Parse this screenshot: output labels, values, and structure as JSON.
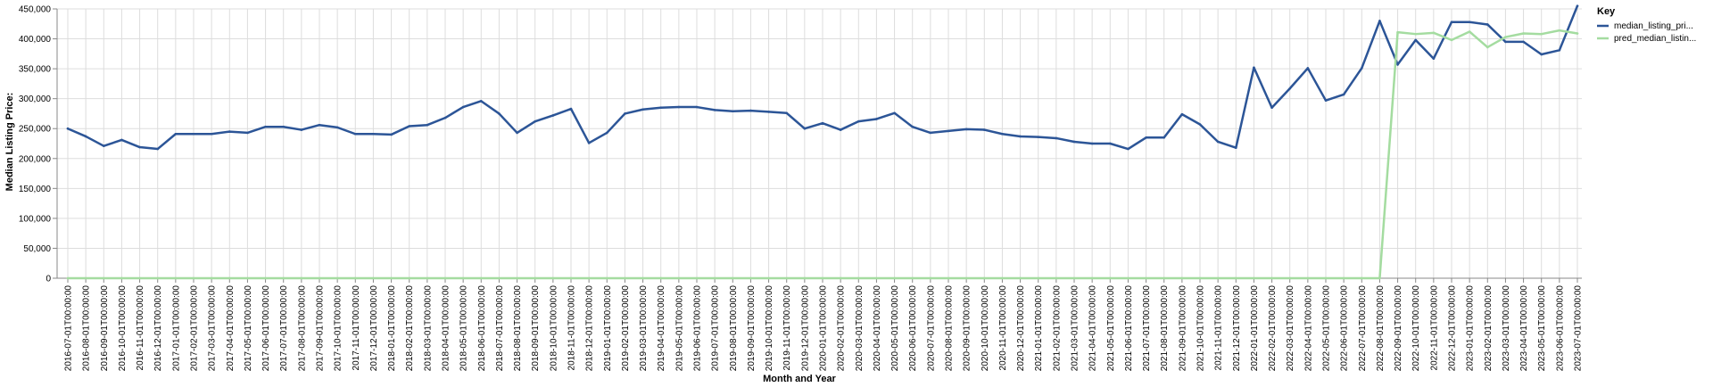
{
  "chart_data": {
    "type": "line",
    "xlabel": "Month and Year",
    "ylabel": "Median Listing Price:",
    "ylim": [
      0,
      450000
    ],
    "yticks": [
      0,
      50000,
      100000,
      150000,
      200000,
      250000,
      300000,
      350000,
      400000,
      450000
    ],
    "ytick_labels": [
      "0",
      "50,000",
      "100,000",
      "150,000",
      "200,000",
      "250,000",
      "300,000",
      "350,000",
      "400,000",
      "450,000"
    ],
    "grid": true,
    "legend": {
      "title": "Key",
      "placement": "right"
    },
    "x": [
      "2016-07-01T00:00:00",
      "2016-08-01T00:00:00",
      "2016-09-01T00:00:00",
      "2016-10-01T00:00:00",
      "2016-11-01T00:00:00",
      "2016-12-01T00:00:00",
      "2017-01-01T00:00:00",
      "2017-02-01T00:00:00",
      "2017-03-01T00:00:00",
      "2017-04-01T00:00:00",
      "2017-05-01T00:00:00",
      "2017-06-01T00:00:00",
      "2017-07-01T00:00:00",
      "2017-08-01T00:00:00",
      "2017-09-01T00:00:00",
      "2017-10-01T00:00:00",
      "2017-11-01T00:00:00",
      "2017-12-01T00:00:00",
      "2018-01-01T00:00:00",
      "2018-02-01T00:00:00",
      "2018-03-01T00:00:00",
      "2018-04-01T00:00:00",
      "2018-05-01T00:00:00",
      "2018-06-01T00:00:00",
      "2018-07-01T00:00:00",
      "2018-08-01T00:00:00",
      "2018-09-01T00:00:00",
      "2018-10-01T00:00:00",
      "2018-11-01T00:00:00",
      "2018-12-01T00:00:00",
      "2019-01-01T00:00:00",
      "2019-02-01T00:00:00",
      "2019-03-01T00:00:00",
      "2019-04-01T00:00:00",
      "2019-05-01T00:00:00",
      "2019-06-01T00:00:00",
      "2019-07-01T00:00:00",
      "2019-08-01T00:00:00",
      "2019-09-01T00:00:00",
      "2019-10-01T00:00:00",
      "2019-11-01T00:00:00",
      "2019-12-01T00:00:00",
      "2020-01-01T00:00:00",
      "2020-02-01T00:00:00",
      "2020-03-01T00:00:00",
      "2020-04-01T00:00:00",
      "2020-05-01T00:00:00",
      "2020-06-01T00:00:00",
      "2020-07-01T00:00:00",
      "2020-08-01T00:00:00",
      "2020-09-01T00:00:00",
      "2020-10-01T00:00:00",
      "2020-11-01T00:00:00",
      "2020-12-01T00:00:00",
      "2021-01-01T00:00:00",
      "2021-02-01T00:00:00",
      "2021-03-01T00:00:00",
      "2021-04-01T00:00:00",
      "2021-05-01T00:00:00",
      "2021-06-01T00:00:00",
      "2021-07-01T00:00:00",
      "2021-08-01T00:00:00",
      "2021-09-01T00:00:00",
      "2021-10-01T00:00:00",
      "2021-11-01T00:00:00",
      "2021-12-01T00:00:00",
      "2022-01-01T00:00:00",
      "2022-02-01T00:00:00",
      "2022-03-01T00:00:00",
      "2022-04-01T00:00:00",
      "2022-05-01T00:00:00",
      "2022-06-01T00:00:00",
      "2022-07-01T00:00:00",
      "2022-08-01T00:00:00",
      "2022-09-01T00:00:00",
      "2022-10-01T00:00:00",
      "2022-11-01T00:00:00",
      "2022-12-01T00:00:00",
      "2023-01-01T00:00:00",
      "2023-02-01T00:00:00",
      "2023-03-01T00:00:00",
      "2023-04-01T00:00:00",
      "2023-05-01T00:00:00",
      "2023-06-01T00:00:00",
      "2023-07-01T00:00:00"
    ],
    "series": [
      {
        "name": "median_listing_pri...",
        "color": "#2c5597",
        "values": [
          250000,
          237000,
          221000,
          231000,
          219000,
          216000,
          241000,
          241000,
          241000,
          245000,
          243000,
          253000,
          253000,
          248000,
          256000,
          252000,
          241000,
          241000,
          240000,
          254000,
          256000,
          268000,
          286000,
          296000,
          275000,
          243000,
          262000,
          272000,
          283000,
          226000,
          243000,
          275000,
          282000,
          285000,
          286000,
          286000,
          281000,
          279000,
          280000,
          278000,
          276000,
          250000,
          259000,
          248000,
          262000,
          266000,
          276000,
          253000,
          243000,
          246000,
          249000,
          248000,
          241000,
          237000,
          236000,
          234000,
          228000,
          225000,
          225000,
          216000,
          235000,
          235000,
          274000,
          257000,
          228000,
          218000,
          352000,
          285000,
          317000,
          351000,
          297000,
          307000,
          351000,
          430000,
          357000,
          398000,
          367000,
          428000,
          428000,
          424000,
          395000,
          395000,
          374000,
          381000,
          455000
        ]
      },
      {
        "name": "pred_median_listin...",
        "color": "#a4dca0",
        "values": [
          0,
          0,
          0,
          0,
          0,
          0,
          0,
          0,
          0,
          0,
          0,
          0,
          0,
          0,
          0,
          0,
          0,
          0,
          0,
          0,
          0,
          0,
          0,
          0,
          0,
          0,
          0,
          0,
          0,
          0,
          0,
          0,
          0,
          0,
          0,
          0,
          0,
          0,
          0,
          0,
          0,
          0,
          0,
          0,
          0,
          0,
          0,
          0,
          0,
          0,
          0,
          0,
          0,
          0,
          0,
          0,
          0,
          0,
          0,
          0,
          0,
          0,
          0,
          0,
          0,
          0,
          0,
          0,
          0,
          0,
          0,
          0,
          0,
          0,
          411000,
          408000,
          410000,
          398000,
          412000,
          386000,
          403000,
          409000,
          408000,
          414000,
          409000
        ]
      }
    ]
  }
}
